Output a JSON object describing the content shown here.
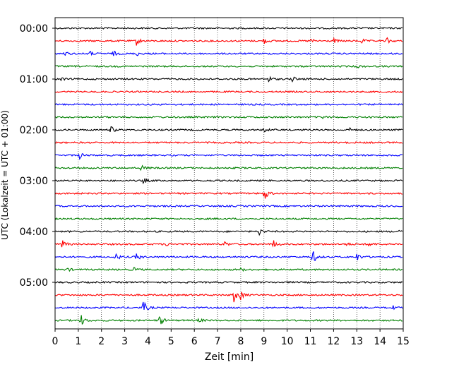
{
  "chart_data": {
    "type": "line",
    "xlabel": "Zeit  [min]",
    "ylabel": "UTC (Lokalzeit = UTC + 01:00)",
    "xlim": [
      0,
      15
    ],
    "x_ticks": [
      "0",
      "1",
      "2",
      "3",
      "4",
      "5",
      "6",
      "7",
      "8",
      "9",
      "10",
      "11",
      "12",
      "13",
      "14",
      "15"
    ],
    "y_tick_labels": [
      "00:00",
      "01:00",
      "02:00",
      "03:00",
      "04:00",
      "05:00"
    ],
    "grid": "vertical dotted lines at each minute",
    "trace_colors": [
      "#000000",
      "#ff0000",
      "#0000ff",
      "#008000"
    ],
    "series": [
      {
        "start": "00:00",
        "color": "#000000",
        "events": []
      },
      {
        "start": "00:15",
        "color": "#ff0000",
        "events": [
          [
            3.5,
            6
          ],
          [
            9,
            4
          ],
          [
            11,
            3
          ],
          [
            12,
            3
          ],
          [
            13.2,
            3
          ],
          [
            14.3,
            4
          ]
        ]
      },
      {
        "start": "00:30",
        "color": "#0000ff",
        "events": [
          [
            0.4,
            3
          ],
          [
            1.5,
            3
          ],
          [
            2.5,
            4
          ],
          [
            3.5,
            3
          ]
        ]
      },
      {
        "start": "00:45",
        "color": "#008000",
        "events": [
          [
            13,
            2
          ]
        ]
      },
      {
        "start": "01:00",
        "color": "#000000",
        "events": [
          [
            0.2,
            3
          ],
          [
            9.2,
            4
          ],
          [
            10.2,
            4
          ]
        ]
      },
      {
        "start": "01:15",
        "color": "#ff0000",
        "events": []
      },
      {
        "start": "01:30",
        "color": "#0000ff",
        "events": []
      },
      {
        "start": "01:45",
        "color": "#008000",
        "events": [
          [
            11.5,
            2
          ]
        ]
      },
      {
        "start": "02:00",
        "color": "#000000",
        "events": [
          [
            2.4,
            5
          ],
          [
            9,
            3
          ],
          [
            12.7,
            2
          ]
        ]
      },
      {
        "start": "02:15",
        "color": "#ff0000",
        "events": []
      },
      {
        "start": "02:30",
        "color": "#0000ff",
        "events": [
          [
            1.05,
            5
          ]
        ]
      },
      {
        "start": "02:45",
        "color": "#008000",
        "events": [
          [
            3.7,
            4
          ]
        ]
      },
      {
        "start": "03:00",
        "color": "#000000",
        "events": [
          [
            3.8,
            4
          ]
        ]
      },
      {
        "start": "03:15",
        "color": "#ff0000",
        "events": [
          [
            9,
            12
          ]
        ]
      },
      {
        "start": "03:30",
        "color": "#0000ff",
        "events": []
      },
      {
        "start": "03:45",
        "color": "#008000",
        "events": []
      },
      {
        "start": "04:00",
        "color": "#000000",
        "events": [
          [
            8.8,
            5
          ],
          [
            14.8,
            3
          ]
        ]
      },
      {
        "start": "04:15",
        "color": "#ff0000",
        "events": [
          [
            0.3,
            7
          ],
          [
            4.7,
            4
          ],
          [
            7.3,
            4
          ],
          [
            9.4,
            6
          ],
          [
            12.5,
            3
          ],
          [
            13.5,
            3
          ]
        ]
      },
      {
        "start": "04:30",
        "color": "#0000ff",
        "events": [
          [
            2.6,
            6
          ],
          [
            3.5,
            6
          ],
          [
            11.1,
            10
          ],
          [
            13,
            6
          ]
        ]
      },
      {
        "start": "04:45",
        "color": "#008000",
        "events": [
          [
            0.5,
            3
          ],
          [
            3.4,
            3
          ],
          [
            8,
            2
          ]
        ]
      },
      {
        "start": "05:00",
        "color": "#000000",
        "events": []
      },
      {
        "start": "05:15",
        "color": "#ff0000",
        "events": [
          [
            7.7,
            10
          ],
          [
            8,
            6
          ]
        ]
      },
      {
        "start": "05:30",
        "color": "#0000ff",
        "events": [
          [
            3.8,
            10
          ],
          [
            14.5,
            4
          ]
        ]
      },
      {
        "start": "05:45",
        "color": "#008000",
        "events": [
          [
            1.1,
            9
          ],
          [
            4.5,
            8
          ],
          [
            6.2,
            3
          ]
        ]
      }
    ]
  }
}
